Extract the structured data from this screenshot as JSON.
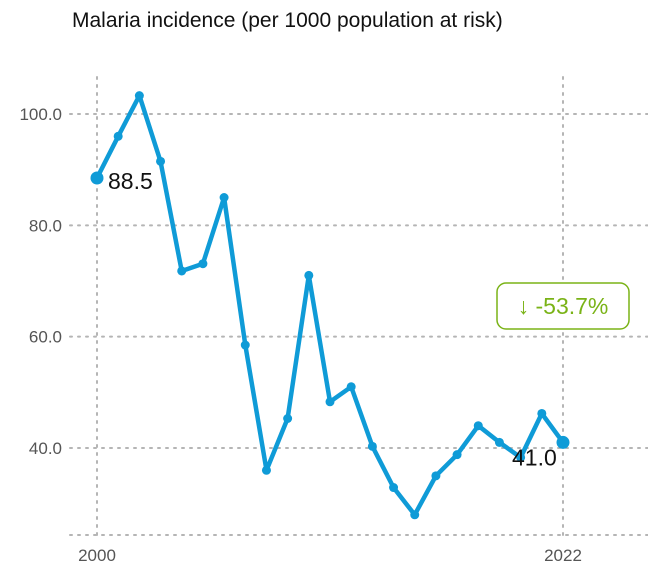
{
  "chart_data": {
    "type": "line",
    "title": "Malaria incidence (per 1000 population at risk)",
    "xlabel": "",
    "ylabel": "",
    "x": [
      2000,
      2001,
      2002,
      2003,
      2004,
      2005,
      2006,
      2007,
      2008,
      2009,
      2010,
      2011,
      2012,
      2013,
      2014,
      2015,
      2016,
      2017,
      2018,
      2019,
      2020,
      2021,
      2022
    ],
    "series": [
      {
        "values": [
          88.5,
          96.0,
          103.3,
          91.5,
          71.8,
          73.1,
          85.0,
          58.5,
          36.0,
          45.3,
          71.0,
          48.3,
          51.0,
          40.3,
          32.9,
          28.0,
          35.0,
          38.8,
          44.0,
          41.0,
          38.3,
          46.2,
          41.0
        ],
        "color": "#0f9bd7"
      }
    ],
    "xlim": [
      2000,
      2022
    ],
    "ylim": [
      24,
      109
    ],
    "x_ticks": [
      "2000",
      "2022"
    ],
    "y_ticks": [
      "40.0",
      "60.0",
      "80.0",
      "100.0"
    ],
    "y_tick_values": [
      40,
      60,
      80,
      100
    ],
    "grid": "dotted",
    "annotations": {
      "start_label": "88.5",
      "end_label": "41.0",
      "change_label": "↓ -53.7%",
      "change_color": "#7ab317"
    }
  }
}
